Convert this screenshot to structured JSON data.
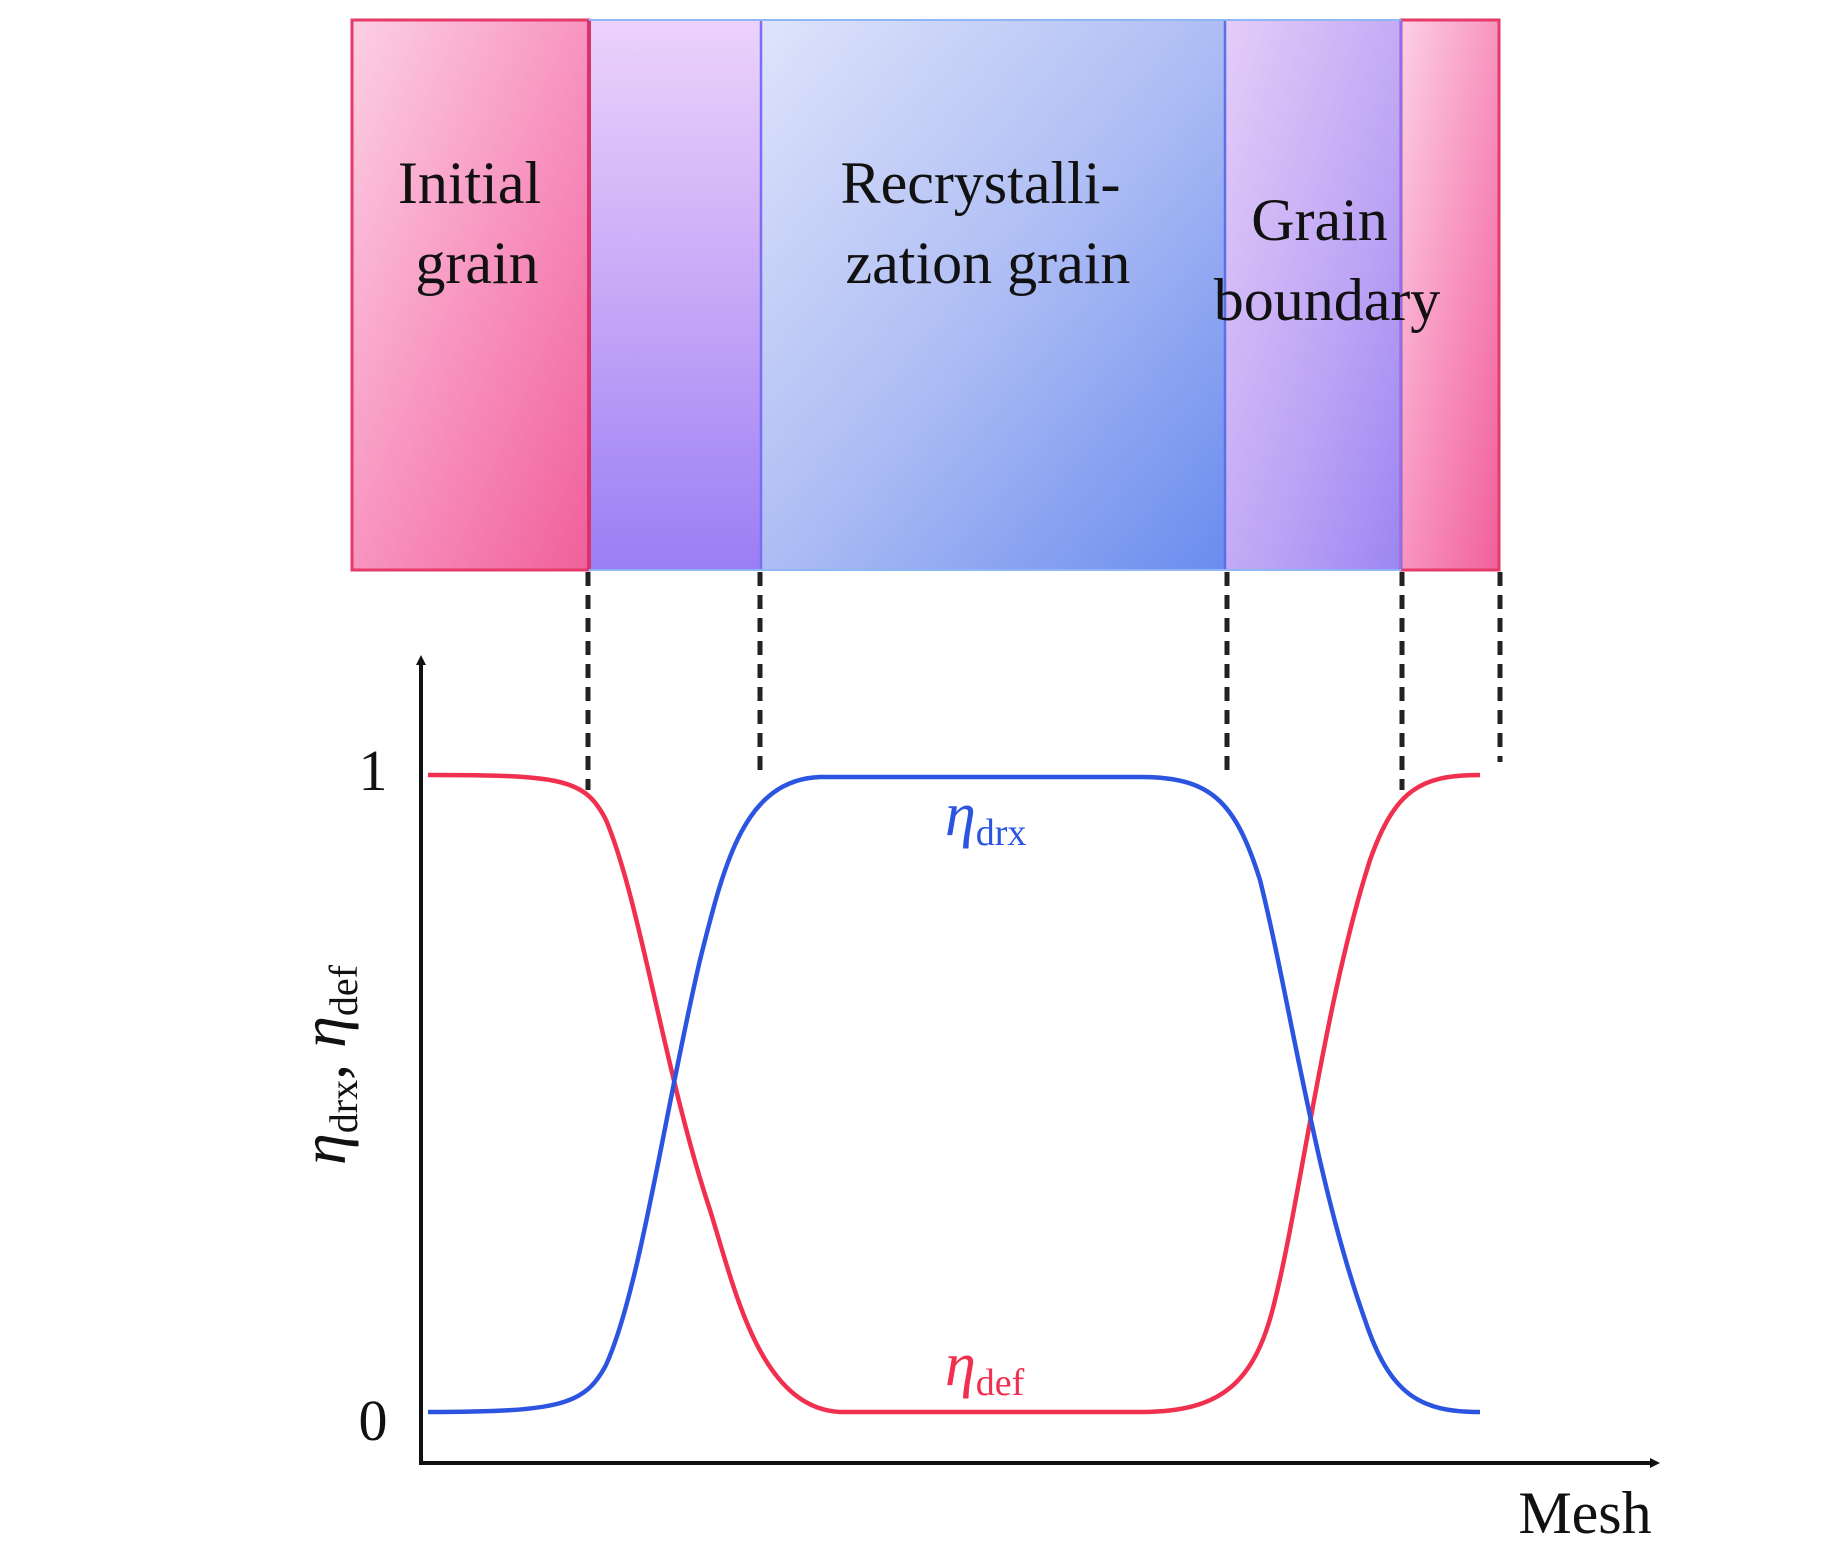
{
  "regions": {
    "initial_grain": [
      "Initial",
      "grain"
    ],
    "recrystallization_grain": [
      "Recrystalli-",
      "zation grain"
    ],
    "grain_boundary": [
      "Grain",
      "boundary"
    ]
  },
  "axes": {
    "y_tick_top": "1",
    "y_tick_bottom": "0",
    "x_label": "Mesh",
    "y_label": {
      "symbol": "η",
      "sub1": "drx",
      "sep": ", ",
      "sub2": "def"
    }
  },
  "curves": {
    "drx": {
      "symbol": "η",
      "sub": "drx",
      "color": "#2b55e0"
    },
    "def": {
      "symbol": "η",
      "sub": "def",
      "color": "#f0304e"
    }
  },
  "colors": {
    "pink": "#f06aa0",
    "purple": "#a58af5",
    "blue": "#6f8ff0"
  }
}
